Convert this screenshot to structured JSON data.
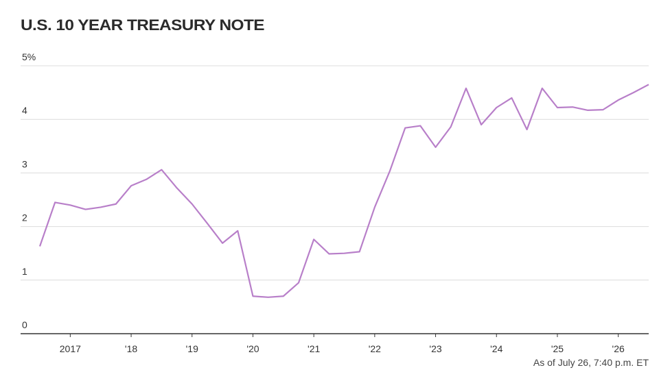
{
  "chart_data": {
    "type": "line",
    "title": "U.S. 10 YEAR TREASURY NOTE",
    "note": "As of July 26, 7:40 p.m. ET",
    "x": [
      2017,
      2017.25,
      2017.5,
      2017.75,
      2018,
      2018.25,
      2018.5,
      2018.75,
      2019,
      2019.25,
      2019.5,
      2019.75,
      2020,
      2020.25,
      2020.5,
      2020.75,
      2021,
      2021.25,
      2021.5,
      2021.75,
      2022,
      2022.25,
      2022.5,
      2022.75,
      2023,
      2023.25,
      2023.5,
      2023.75,
      2024,
      2024.25,
      2024.5,
      2024.75,
      2025,
      2025.25,
      2025.5,
      2025.75,
      2026,
      2026.25,
      2026.5,
      2026.75,
      2027
    ],
    "series": [
      {
        "name": "U.S. 10 year Treasury note yield",
        "color": "#b87fc9",
        "values": [
          1.63,
          2.45,
          2.4,
          2.32,
          2.36,
          2.42,
          2.76,
          2.88,
          3.06,
          2.72,
          2.42,
          2.06,
          1.69,
          1.92,
          0.7,
          0.68,
          0.7,
          0.95,
          1.76,
          1.49,
          1.5,
          1.53,
          2.36,
          3.04,
          3.84,
          3.88,
          3.48,
          3.86,
          4.58,
          3.9,
          4.22,
          4.4,
          3.81,
          4.58,
          4.22,
          4.23,
          4.17,
          4.18,
          4.36,
          4.5,
          4.65
        ]
      }
    ],
    "xlim": [
      2017,
      2027
    ],
    "xticks": [
      {
        "value": 2017.5,
        "label": "2017"
      },
      {
        "value": 2018.5,
        "label": "'18"
      },
      {
        "value": 2019.5,
        "label": "'19"
      },
      {
        "value": 2020.5,
        "label": "'20"
      },
      {
        "value": 2021.5,
        "label": "'21"
      },
      {
        "value": 2022.5,
        "label": "'22"
      },
      {
        "value": 2023.5,
        "label": "'23"
      },
      {
        "value": 2024.5,
        "label": "'24"
      },
      {
        "value": 2025.5,
        "label": "'25"
      },
      {
        "value": 2026.5,
        "label": "'26"
      }
    ],
    "ylim": [
      0,
      5
    ],
    "yticks": [
      0,
      1,
      2,
      3,
      4,
      {
        "value": 5,
        "label": "5%"
      }
    ],
    "grid": true
  }
}
